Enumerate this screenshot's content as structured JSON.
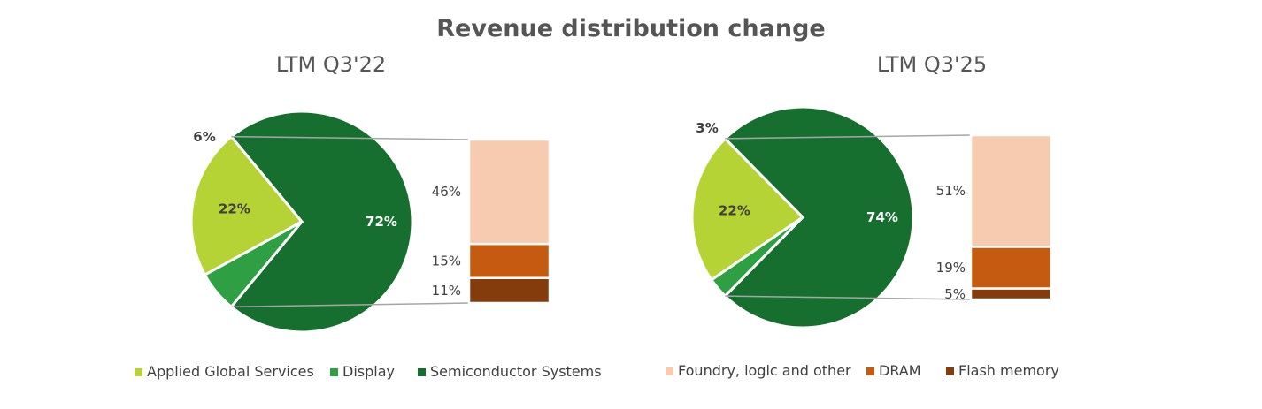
{
  "title": "Revenue distribution change",
  "colors": {
    "applied_global_services": "#b5d334",
    "display": "#2ea043",
    "semiconductor_systems": "#166e2f",
    "foundry_logic_other": "#f7cbb0",
    "dram": "#c55a11",
    "flash_memory": "#843c0c",
    "connector": "#a6a6a6"
  },
  "chart_data": [
    {
      "type": "pie",
      "title": "LTM Q3'22",
      "slices": [
        {
          "name": "Semiconductor Systems",
          "value": 72,
          "label": "72%"
        },
        {
          "name": "Applied Global Services",
          "value": 22,
          "label": "22%"
        },
        {
          "name": "Display",
          "value": 6,
          "label": "6%"
        }
      ],
      "breakdown": {
        "of": "Semiconductor Systems",
        "segments": [
          {
            "name": "Foundry, logic and other",
            "value": 46,
            "label": "46%"
          },
          {
            "name": "DRAM",
            "value": 15,
            "label": "15%"
          },
          {
            "name": "Flash memory",
            "value": 11,
            "label": "11%"
          }
        ]
      }
    },
    {
      "type": "pie",
      "title": "LTM Q3'25",
      "slices": [
        {
          "name": "Semiconductor Systems",
          "value": 74,
          "label": "74%"
        },
        {
          "name": "Applied Global Services",
          "value": 22,
          "label": "22%"
        },
        {
          "name": "Display",
          "value": 3,
          "label": "3%"
        }
      ],
      "breakdown": {
        "of": "Semiconductor Systems",
        "segments": [
          {
            "name": "Foundry, logic and other",
            "value": 51,
            "label": "51%"
          },
          {
            "name": "DRAM",
            "value": 19,
            "label": "19%"
          },
          {
            "name": "Flash memory",
            "value": 5,
            "label": "5%"
          }
        ]
      }
    }
  ],
  "legend_left": [
    {
      "label": "Applied Global Services",
      "color_key": "applied_global_services"
    },
    {
      "label": "Display",
      "color_key": "display"
    },
    {
      "label": "Semiconductor Systems",
      "color_key": "semiconductor_systems"
    }
  ],
  "legend_right": [
    {
      "label": "Foundry, logic and other",
      "color_key": "foundry_logic_other"
    },
    {
      "label": "DRAM",
      "color_key": "dram"
    },
    {
      "label": "Flash memory",
      "color_key": "flash_memory"
    }
  ]
}
